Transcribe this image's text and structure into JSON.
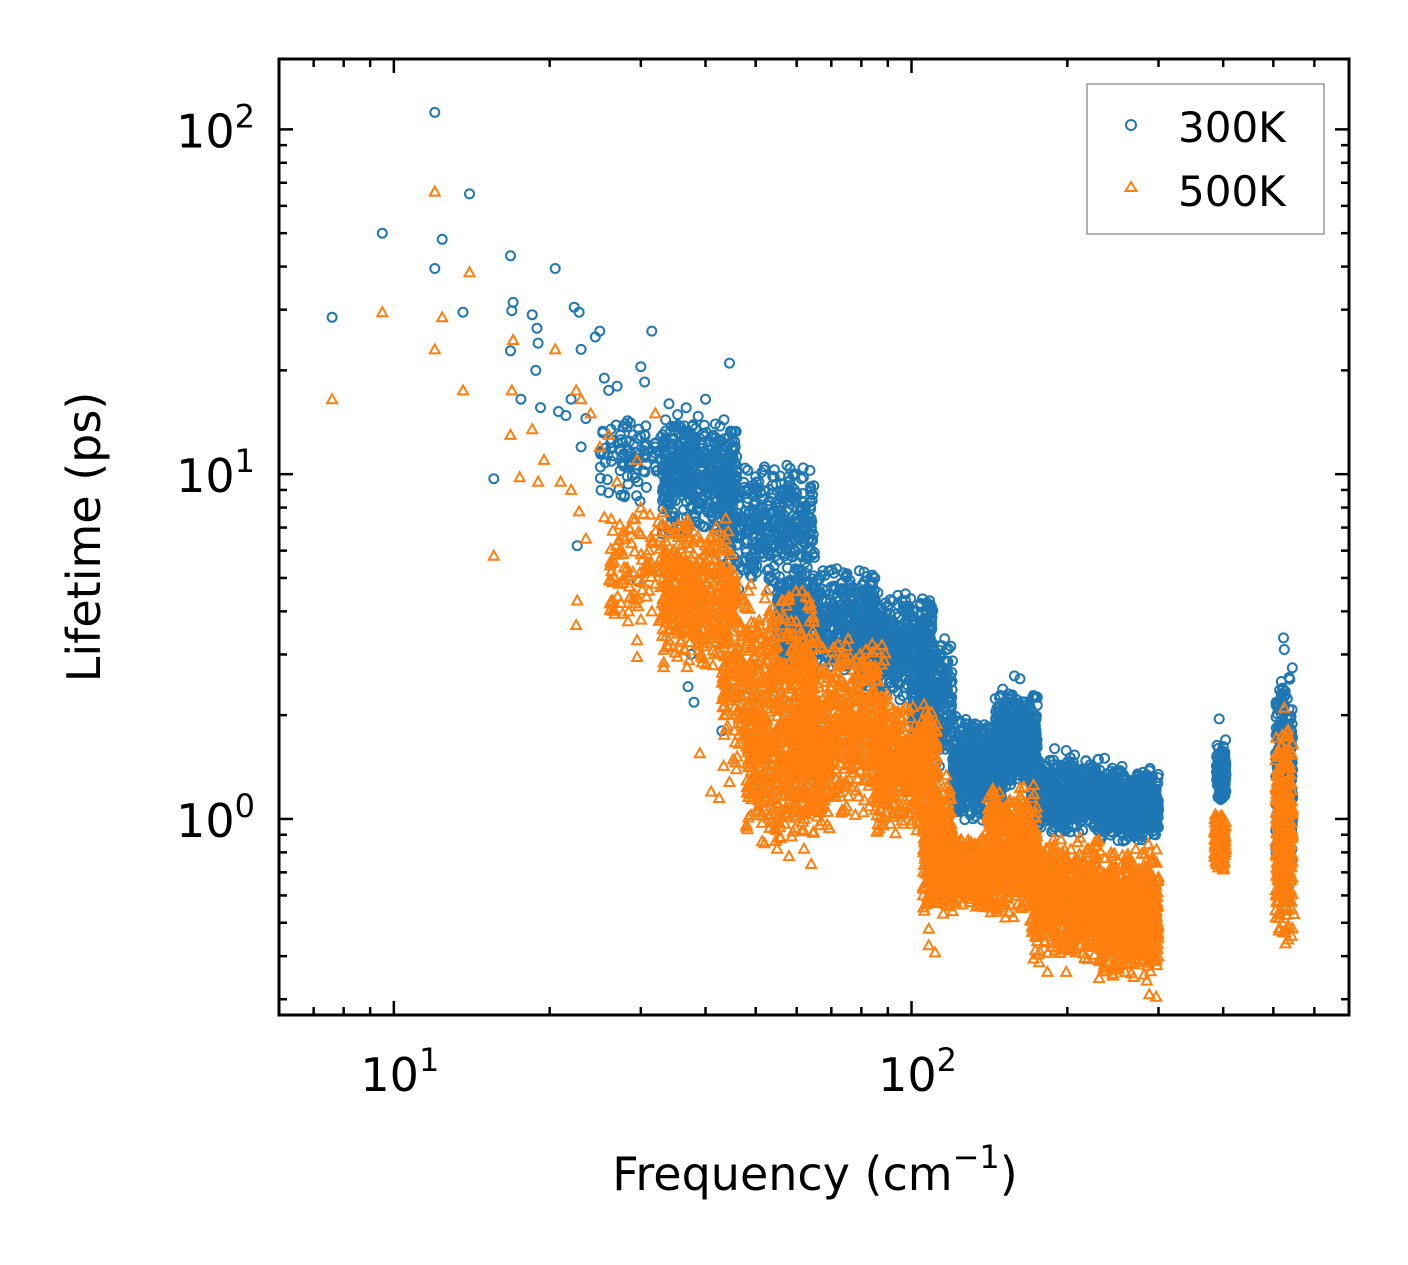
{
  "chart_data": {
    "type": "scatter",
    "title": "",
    "xlabel": "Frequency (cm",
    "xlabel_sup": "−1",
    "xlabel_suffix": ")",
    "ylabel": "Lifetime (ps)",
    "xscale": "log",
    "yscale": "log",
    "xlim": [
      6.0,
      700.0
    ],
    "ylim": [
      0.27,
      160.0
    ],
    "x_major_ticks": [
      {
        "value": 10,
        "base": "10",
        "exp": "1"
      },
      {
        "value": 100,
        "base": "10",
        "exp": "2"
      }
    ],
    "y_major_ticks": [
      {
        "value": 1,
        "base": "10",
        "exp": "0"
      },
      {
        "value": 10,
        "base": "10",
        "exp": "1"
      },
      {
        "value": 100,
        "base": "10",
        "exp": "2"
      }
    ],
    "legend_position": "top-right",
    "colors": {
      "series_300K": "#1f77b4",
      "series_500K": "#ff7f0e",
      "axis": "#000000",
      "legend_border": "#999999"
    },
    "series": [
      {
        "name": "300K",
        "marker": "circle",
        "color": "#1f77b4",
        "points": [
          [
            7.6,
            28.5
          ],
          [
            9.5,
            50
          ],
          [
            12.0,
            112
          ],
          [
            12.0,
            39.5
          ],
          [
            12.4,
            48
          ],
          [
            13.6,
            29.5
          ],
          [
            14.0,
            65
          ],
          [
            16.8,
            43
          ],
          [
            17.0,
            31.5
          ],
          [
            16.9,
            29.8
          ],
          [
            16.8,
            22.8
          ],
          [
            15.6,
            9.7
          ],
          [
            17.6,
            16.5
          ],
          [
            18.5,
            29
          ],
          [
            18.9,
            26.5
          ],
          [
            19.0,
            24
          ],
          [
            18.8,
            20
          ],
          [
            19.2,
            15.6
          ],
          [
            20.5,
            39.5
          ],
          [
            20.8,
            15.2
          ],
          [
            21.5,
            14.8
          ],
          [
            22.0,
            16.5
          ],
          [
            22.3,
            30.5
          ],
          [
            22.8,
            29.5
          ],
          [
            23.0,
            23
          ],
          [
            23.5,
            14.5
          ],
          [
            23.0,
            12
          ],
          [
            24.5,
            25
          ],
          [
            25.0,
            26
          ],
          [
            25.5,
            19
          ],
          [
            26.0,
            17.5
          ],
          [
            27.0,
            18
          ],
          [
            28.0,
            14
          ],
          [
            29.0,
            13
          ],
          [
            30.0,
            20.5
          ],
          [
            30.5,
            18.5
          ],
          [
            31.5,
            26
          ],
          [
            32.0,
            11.5
          ],
          [
            33.0,
            10
          ],
          [
            34.0,
            16
          ],
          [
            22.6,
            6.2
          ],
          [
            29.5,
            4.9
          ],
          [
            44.5,
            21
          ],
          [
            40.0,
            16.5
          ],
          [
            39.0,
            8.2
          ],
          [
            37.5,
            3.0
          ],
          [
            37.0,
            2.42
          ],
          [
            38.0,
            2.18
          ],
          [
            43.0,
            1.8
          ],
          [
            52.0,
            10.5
          ],
          [
            58.0,
            9.5
          ],
          [
            55.0,
            8.0
          ],
          [
            81.0,
            5.2
          ],
          [
            82.0,
            5.05
          ],
          [
            99.0,
            4.1
          ],
          [
            150.0,
            2.38
          ],
          [
            158.0,
            2.6
          ],
          [
            162.0,
            2.55
          ],
          [
            172.0,
            2.28
          ],
          [
            189.0,
            1.6
          ],
          [
            199.0,
            1.58
          ],
          [
            236.0,
            1.5
          ],
          [
            255.0,
            1.42
          ],
          [
            288.0,
            1.38
          ],
          [
            393.0,
            1.95
          ],
          [
            523.0,
            3.35
          ],
          [
            525.0,
            3.1
          ]
        ],
        "bands": [
          {
            "x": [
              25,
              38
            ],
            "y": [
              8,
              16
            ],
            "n": 160
          },
          {
            "x": [
              33,
              46
            ],
            "y": [
              6.5,
              15
            ],
            "n": 420
          },
          {
            "x": [
              43,
              65
            ],
            "y": [
              4.5,
              11
            ],
            "n": 420
          },
          {
            "x": [
              55,
              85
            ],
            "y": [
              2.6,
              5.5
            ],
            "n": 620
          },
          {
            "x": [
              78,
              110
            ],
            "y": [
              2.2,
              4.6
            ],
            "n": 620
          },
          {
            "x": [
              100,
              120
            ],
            "y": [
              1.4,
              3.4
            ],
            "n": 380
          },
          {
            "x": [
              120,
              150
            ],
            "y": [
              0.95,
              2.0
            ],
            "n": 520
          },
          {
            "x": [
              145,
              175
            ],
            "y": [
              1.2,
              2.4
            ],
            "n": 480
          },
          {
            "x": [
              170,
              230
            ],
            "y": [
              0.9,
              1.55
            ],
            "n": 620
          },
          {
            "x": [
              230,
              300
            ],
            "y": [
              0.85,
              1.42
            ],
            "n": 700
          },
          {
            "x": [
              388,
              405
            ],
            "y": [
              1.1,
              1.7
            ],
            "n": 140
          },
          {
            "x": [
              505,
              545
            ],
            "y": [
              0.7,
              2.8
            ],
            "n": 320
          }
        ]
      },
      {
        "name": "500K",
        "marker": "triangle",
        "color": "#ff7f0e",
        "points": [
          [
            7.6,
            16.5
          ],
          [
            9.5,
            29.5
          ],
          [
            12.0,
            66
          ],
          [
            12.0,
            23
          ],
          [
            12.4,
            28.5
          ],
          [
            13.6,
            17.5
          ],
          [
            14.0,
            38.5
          ],
          [
            15.6,
            5.8
          ],
          [
            16.8,
            13
          ],
          [
            16.9,
            17.5
          ],
          [
            17.0,
            24.5
          ],
          [
            17.5,
            9.8
          ],
          [
            18.5,
            13.5
          ],
          [
            19.0,
            9.5
          ],
          [
            19.5,
            11
          ],
          [
            20.5,
            23
          ],
          [
            21.0,
            9.5
          ],
          [
            22.0,
            9
          ],
          [
            22.5,
            17.5
          ],
          [
            23.0,
            16.5
          ],
          [
            22.8,
            7.8
          ],
          [
            23.5,
            6.5
          ],
          [
            24.0,
            15
          ],
          [
            25.0,
            12
          ],
          [
            25.5,
            7.5
          ],
          [
            26.0,
            13
          ],
          [
            27.0,
            9.5
          ],
          [
            28.0,
            6.5
          ],
          [
            29.5,
            11
          ],
          [
            30.0,
            8.0
          ],
          [
            31.0,
            5.5
          ],
          [
            32.0,
            15
          ],
          [
            22.6,
            4.3
          ],
          [
            22.5,
            3.65
          ],
          [
            26.5,
            4.3
          ],
          [
            29.5,
            3.3
          ],
          [
            29.5,
            2.95
          ],
          [
            31.5,
            4.0
          ],
          [
            39.0,
            1.55
          ],
          [
            41.0,
            1.2
          ],
          [
            42.5,
            1.15
          ],
          [
            44.5,
            1.28
          ],
          [
            48.0,
            0.95
          ],
          [
            52.0,
            0.85
          ],
          [
            55.0,
            0.82
          ],
          [
            58.0,
            0.78
          ],
          [
            62.0,
            0.82
          ],
          [
            64.0,
            0.74
          ],
          [
            108.0,
            0.43
          ],
          [
            108.0,
            0.48
          ],
          [
            111.0,
            0.41
          ],
          [
            168.0,
            0.6
          ],
          [
            183.0,
            0.36
          ],
          [
            199.0,
            0.36
          ],
          [
            288.0,
            0.31
          ],
          [
            297.0,
            0.305
          ],
          [
            525.0,
            2.1
          ],
          [
            522.0,
            0.47
          ],
          [
            548.0,
            0.53
          ],
          [
            392.0,
            0.77
          ]
        ],
        "bands": [
          {
            "x": [
              26,
              38
            ],
            "y": [
              3.5,
              8.0
            ],
            "n": 160
          },
          {
            "x": [
              33,
              46
            ],
            "y": [
              2.6,
              7.5
            ],
            "n": 420
          },
          {
            "x": [
              43,
              65
            ],
            "y": [
              1.3,
              5.0
            ],
            "n": 520
          },
          {
            "x": [
              48,
              70
            ],
            "y": [
              0.85,
              2.2
            ],
            "n": 420
          },
          {
            "x": [
              60,
              90
            ],
            "y": [
              1.0,
              3.5
            ],
            "n": 620
          },
          {
            "x": [
              85,
              112
            ],
            "y": [
              0.9,
              2.2
            ],
            "n": 520
          },
          {
            "x": [
              105,
              120
            ],
            "y": [
              0.5,
              1.4
            ],
            "n": 320
          },
          {
            "x": [
              118,
              145
            ],
            "y": [
              0.55,
              0.9
            ],
            "n": 420
          },
          {
            "x": [
              140,
              175
            ],
            "y": [
              0.5,
              1.3
            ],
            "n": 520
          },
          {
            "x": [
              170,
              230
            ],
            "y": [
              0.38,
              0.9
            ],
            "n": 620
          },
          {
            "x": [
              230,
              300
            ],
            "y": [
              0.33,
              0.85
            ],
            "n": 700
          },
          {
            "x": [
              385,
              405
            ],
            "y": [
              0.7,
              1.05
            ],
            "n": 160
          },
          {
            "x": [
              505,
              545
            ],
            "y": [
              0.42,
              1.9
            ],
            "n": 340
          }
        ]
      }
    ]
  }
}
